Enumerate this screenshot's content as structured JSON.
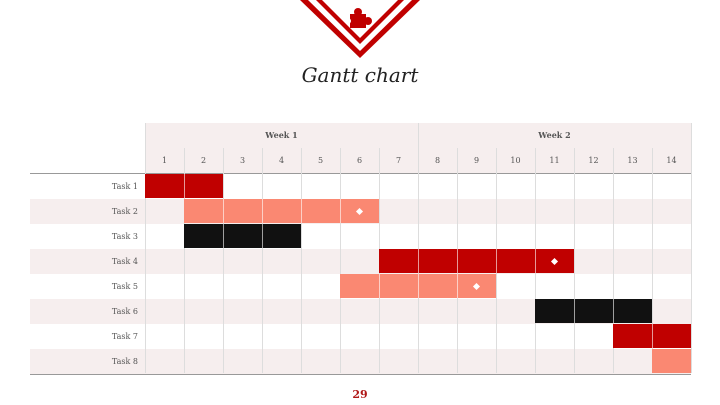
{
  "slide": {
    "title": "Gantt chart",
    "page_number": "29",
    "icon": "puzzle-piece-icon",
    "accent_color": "#c00000"
  },
  "chart_data": {
    "type": "gantt",
    "weeks": [
      "Week 1",
      "Week 2"
    ],
    "days": [
      "1",
      "2",
      "3",
      "4",
      "5",
      "6",
      "7",
      "8",
      "9",
      "10",
      "11",
      "12",
      "13",
      "14"
    ],
    "tasks": [
      {
        "label": "Task 1",
        "start": 1,
        "end": 2,
        "color": "#c00000"
      },
      {
        "label": "Task 2",
        "start": 2,
        "end": 6,
        "color": "#fa8872",
        "milestone": 6
      },
      {
        "label": "Task 3",
        "start": 2,
        "end": 4,
        "color": "#111111"
      },
      {
        "label": "Task 4",
        "start": 7,
        "end": 11,
        "color": "#c00000",
        "milestone": 11
      },
      {
        "label": "Task 5",
        "start": 6,
        "end": 9,
        "color": "#fa8872",
        "milestone": 9
      },
      {
        "label": "Task 6",
        "start": 11,
        "end": 13,
        "color": "#111111"
      },
      {
        "label": "Task 7",
        "start": 13,
        "end": 14,
        "color": "#c00000"
      },
      {
        "label": "Task 8",
        "start": 14,
        "end": 14,
        "color": "#fa8872"
      }
    ]
  }
}
